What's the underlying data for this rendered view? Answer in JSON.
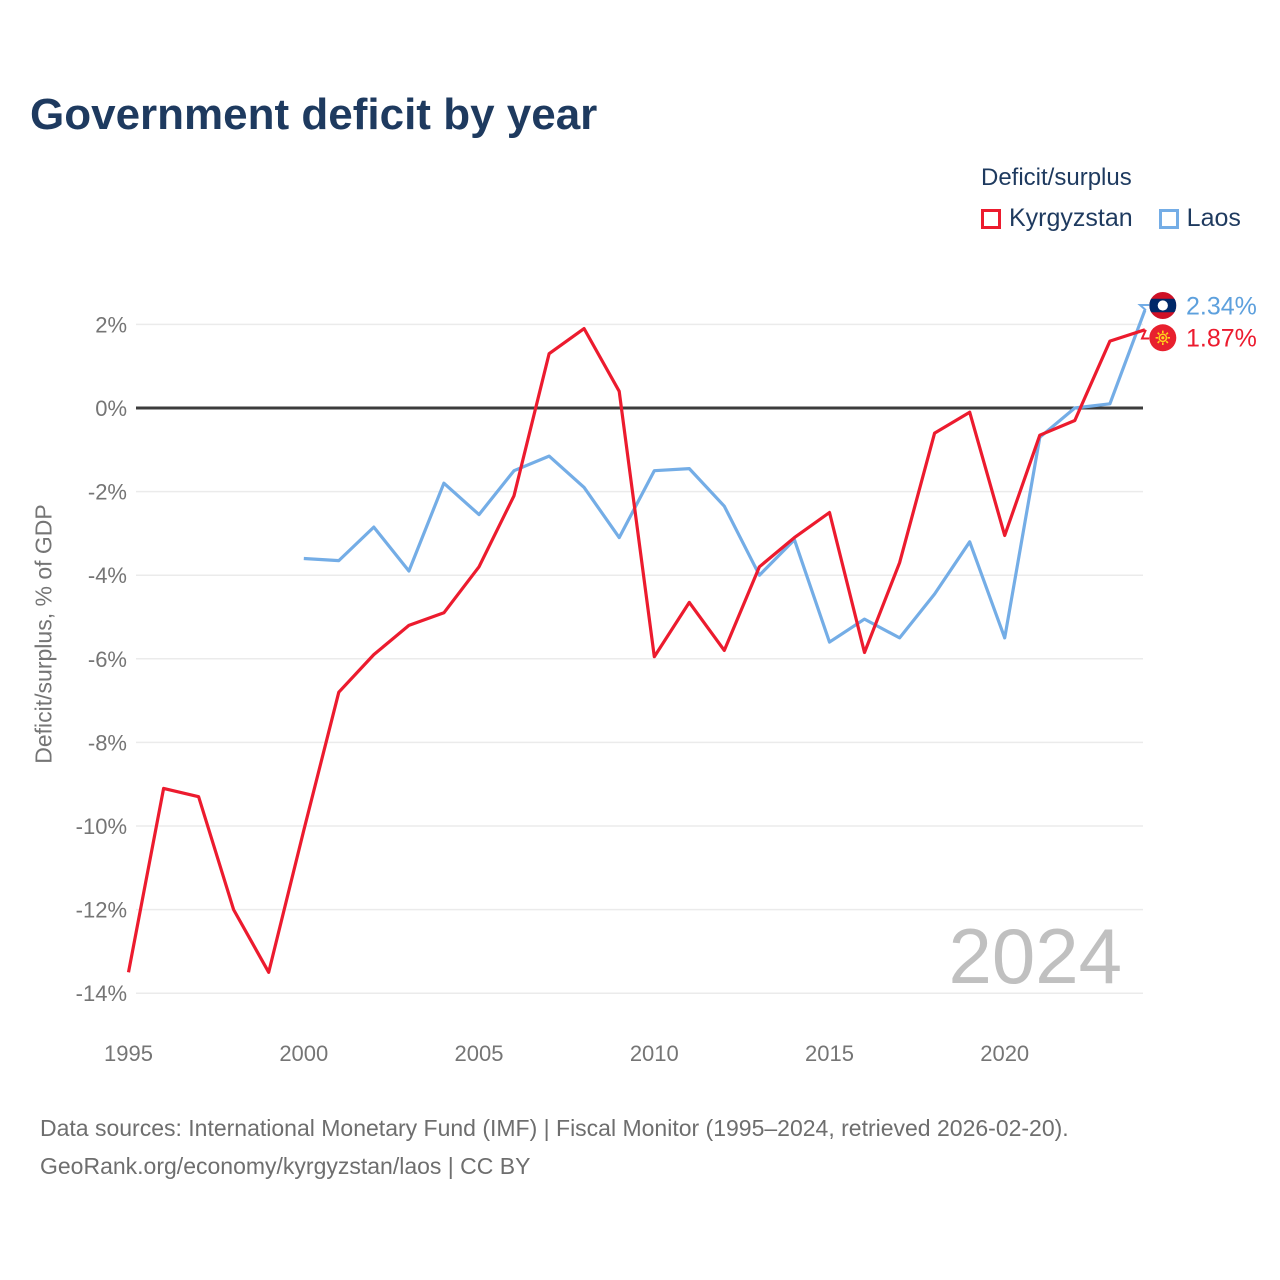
{
  "title": "Government deficit by year",
  "legend": {
    "title": "Deficit/surplus",
    "items": [
      {
        "label": "Kyrgyzstan",
        "color": "#ec1b2e"
      },
      {
        "label": "Laos",
        "color": "#74ade6"
      }
    ]
  },
  "chart_data": {
    "type": "line",
    "title": "Government deficit by year",
    "xlabel": "",
    "ylabel": "Deficit/surplus, % of GDP",
    "xlim": [
      1995,
      2024
    ],
    "ylim": [
      -14.6,
      3.0
    ],
    "grid": true,
    "legend_position": "top-right",
    "x_ticks": [
      {
        "value": 1995,
        "label": "1995"
      },
      {
        "value": 2000,
        "label": "2000"
      },
      {
        "value": 2005,
        "label": "2005"
      },
      {
        "value": 2010,
        "label": "2010"
      },
      {
        "value": 2015,
        "label": "2015"
      },
      {
        "value": 2020,
        "label": "2020"
      }
    ],
    "y_ticks": [
      {
        "value": 2,
        "label": "2%"
      },
      {
        "value": 0,
        "label": "0%"
      },
      {
        "value": -2,
        "label": "-2%"
      },
      {
        "value": -4,
        "label": "-4%"
      },
      {
        "value": -6,
        "label": "-6%"
      },
      {
        "value": -8,
        "label": "-8%"
      },
      {
        "value": -10,
        "label": "-10%"
      },
      {
        "value": -12,
        "label": "-12%"
      },
      {
        "value": -14,
        "label": "-14%"
      }
    ],
    "series": [
      {
        "name": "Kyrgyzstan",
        "color": "#ec1b2e",
        "end_label": "1.87%",
        "years": [
          1995,
          1996,
          1997,
          1998,
          1999,
          2000,
          2001,
          2002,
          2003,
          2004,
          2005,
          2006,
          2007,
          2008,
          2009,
          2010,
          2011,
          2012,
          2013,
          2014,
          2015,
          2016,
          2017,
          2018,
          2019,
          2020,
          2021,
          2022,
          2023,
          2024
        ],
        "values": [
          -13.5,
          -9.1,
          -9.3,
          -12.0,
          -13.5,
          -10.1,
          -6.8,
          -5.9,
          -5.2,
          -4.9,
          -3.8,
          -2.1,
          1.3,
          1.9,
          0.4,
          -5.95,
          -4.65,
          -5.8,
          -3.8,
          -3.1,
          -2.5,
          -5.85,
          -3.7,
          -0.6,
          -0.1,
          -3.05,
          -0.65,
          -0.3,
          1.6,
          1.87
        ]
      },
      {
        "name": "Laos",
        "color": "#74ade6",
        "end_label": "2.34%",
        "years": [
          2000,
          2001,
          2002,
          2003,
          2004,
          2005,
          2006,
          2007,
          2008,
          2009,
          2010,
          2011,
          2012,
          2013,
          2014,
          2015,
          2016,
          2017,
          2018,
          2019,
          2020,
          2021,
          2022,
          2023,
          2024
        ],
        "values": [
          -3.6,
          -3.65,
          -2.85,
          -3.9,
          -1.8,
          -2.55,
          -1.5,
          -1.15,
          -1.9,
          -3.1,
          -1.5,
          -1.45,
          -2.35,
          -4.0,
          -3.15,
          -5.6,
          -5.05,
          -5.5,
          -4.45,
          -3.2,
          -5.5,
          -0.7,
          0.0,
          0.1,
          2.34
        ]
      }
    ],
    "watermark": "2024"
  },
  "footer": {
    "line1": "Data sources: International Monetary Fund (IMF) | Fiscal Monitor (1995–2024, retrieved 2026-02-20).",
    "line2": "GeoRank.org/economy/kyrgyzstan/laos | CC BY"
  }
}
